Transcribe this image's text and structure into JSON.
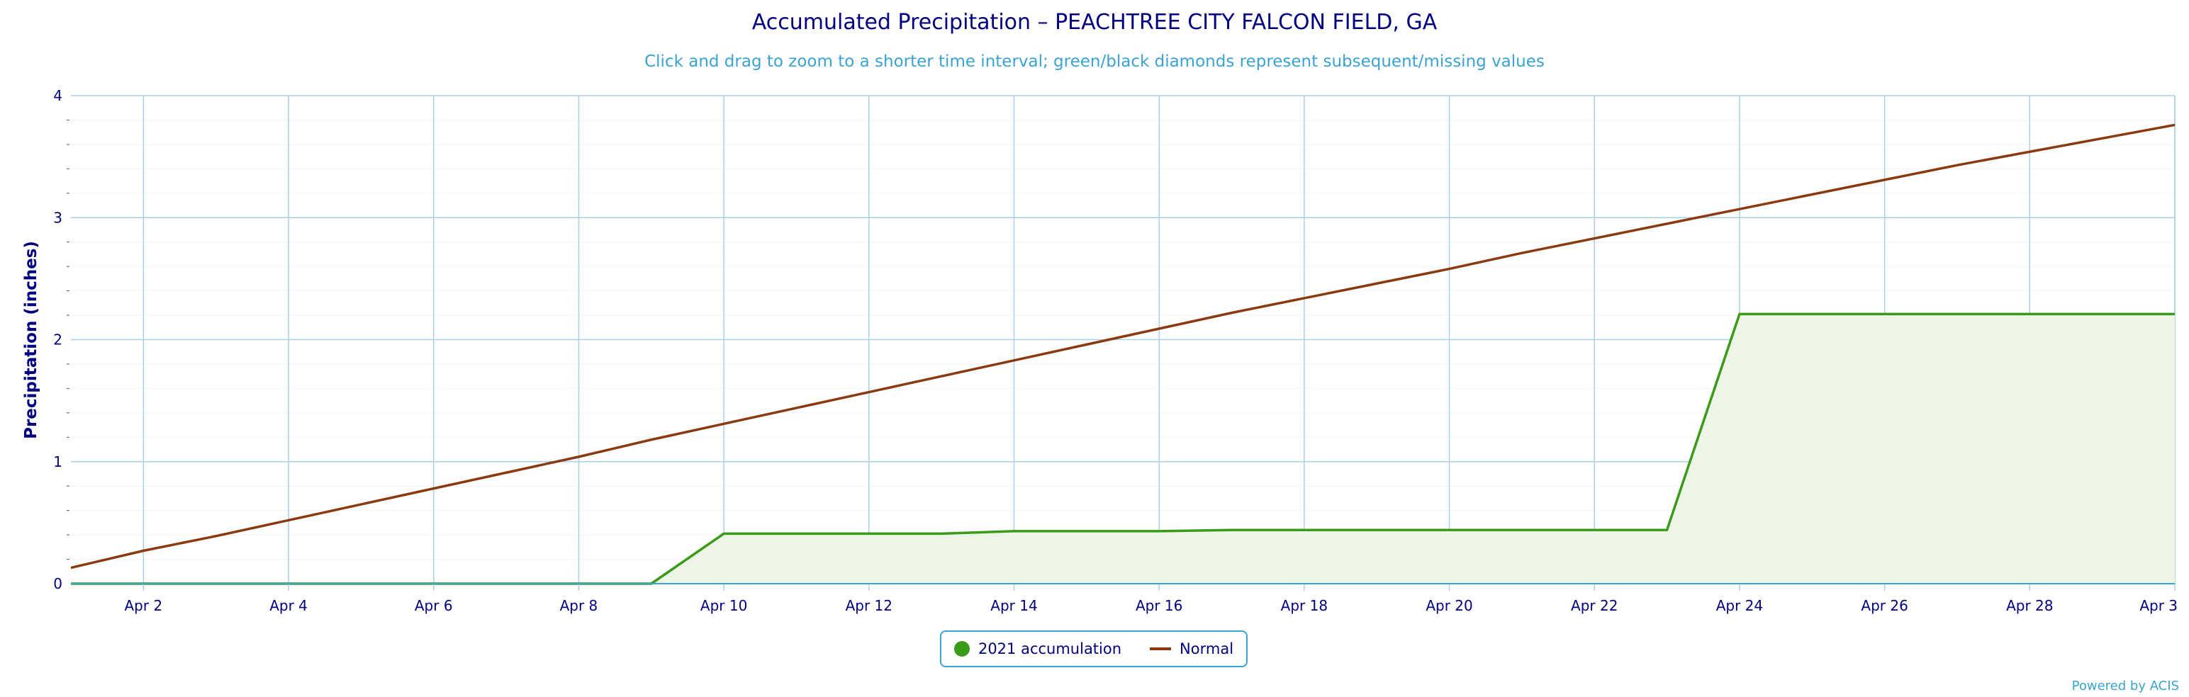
{
  "title": "Accumulated Precipitation – PEACHTREE CITY FALCON FIELD, GA",
  "subtitle": "Click and drag to zoom to a shorter time interval; green/black diamonds represent subsequent/missing values",
  "credit": "Powered by ACIS",
  "colors": {
    "accumulation_line": "#3a9a1a",
    "accumulation_fill": "#edf5e6",
    "normal_line": "#8b3a10",
    "grid": "#aad0e6",
    "axis_text": "#000080",
    "subtitle": "#3ba3d0"
  },
  "legend": {
    "accumulation_label": "2021 accumulation",
    "normal_label": "Normal"
  },
  "chart_data": {
    "type": "line",
    "title": "Accumulated Precipitation – PEACHTREE CITY FALCON FIELD, GA",
    "subtitle": "Click and drag to zoom to a shorter time interval; green/black diamonds represent subsequent/missing values",
    "xlabel": "",
    "ylabel": "Precipitation (inches)",
    "ylim": [
      0,
      4
    ],
    "yticks": [
      "0",
      "1",
      "2",
      "3",
      "4"
    ],
    "xlim": [
      "Apr 1",
      "Apr 30"
    ],
    "xtick_labels": [
      "Apr 2",
      "Apr 4",
      "Apr 6",
      "Apr 8",
      "Apr 10",
      "Apr 12",
      "Apr 14",
      "Apr 16",
      "Apr 18",
      "Apr 20",
      "Apr 22",
      "Apr 24",
      "Apr 26",
      "Apr 28",
      "Apr 3"
    ],
    "grid": true,
    "legend_position": "bottom-center",
    "x": [
      "Apr 1",
      "Apr 2",
      "Apr 3",
      "Apr 4",
      "Apr 5",
      "Apr 6",
      "Apr 7",
      "Apr 8",
      "Apr 9",
      "Apr 10",
      "Apr 11",
      "Apr 12",
      "Apr 13",
      "Apr 14",
      "Apr 15",
      "Apr 16",
      "Apr 17",
      "Apr 18",
      "Apr 19",
      "Apr 20",
      "Apr 21",
      "Apr 22",
      "Apr 23",
      "Apr 24",
      "Apr 25",
      "Apr 26",
      "Apr 27",
      "Apr 28",
      "Apr 29",
      "Apr 30"
    ],
    "series": [
      {
        "name": "2021 accumulation",
        "style": "area",
        "values": [
          0,
          0,
          0,
          0,
          0,
          0,
          0,
          0,
          0,
          0.41,
          0.41,
          0.41,
          0.41,
          0.43,
          0.43,
          0.43,
          0.44,
          0.44,
          0.44,
          0.44,
          0.44,
          0.44,
          0.44,
          2.21,
          2.21,
          2.21,
          2.21,
          2.21,
          2.21,
          2.21
        ]
      },
      {
        "name": "Normal",
        "style": "line",
        "values": [
          0.13,
          0.27,
          0.39,
          0.52,
          0.65,
          0.78,
          0.91,
          1.04,
          1.18,
          1.31,
          1.44,
          1.57,
          1.7,
          1.83,
          1.96,
          2.09,
          2.22,
          2.34,
          2.46,
          2.58,
          2.71,
          2.83,
          2.95,
          3.07,
          3.19,
          3.31,
          3.43,
          3.54,
          3.65,
          3.76
        ]
      }
    ]
  }
}
